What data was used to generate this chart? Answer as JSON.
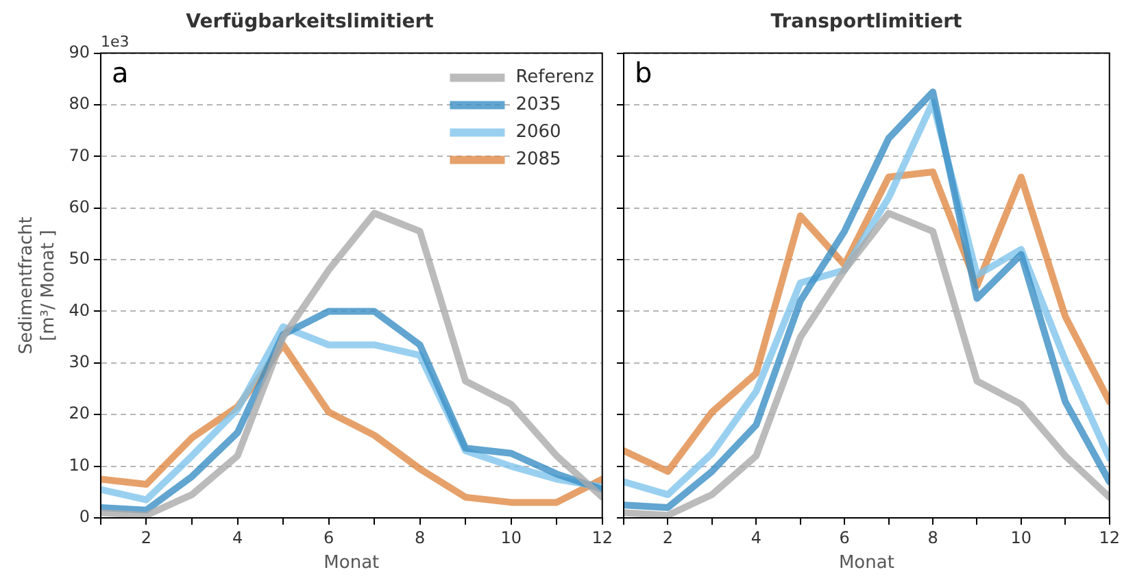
{
  "chart_data": [
    {
      "type": "line",
      "title": "Verfügbarkeitslimitiert",
      "xlabel": "Monat",
      "ylabel": "Sedimentfracht [m³/ Monat ]",
      "annotations": [
        "1e3",
        "a"
      ],
      "x": [
        1,
        2,
        3,
        4,
        5,
        6,
        7,
        8,
        9,
        10,
        11,
        12
      ],
      "series": [
        {
          "name": "Referenz",
          "color": "#aaaaaa",
          "values": [
            1,
            0.5,
            4.5,
            12,
            35,
            48,
            59,
            55.5,
            26.5,
            22,
            12,
            4
          ]
        },
        {
          "name": "2035",
          "color": "#3a8fc4",
          "values": [
            2,
            1.5,
            8,
            16.5,
            35.5,
            40,
            40,
            33.5,
            13.5,
            12.5,
            8.5,
            5.5
          ]
        },
        {
          "name": "2060",
          "color": "#7fc4ec",
          "values": [
            5.5,
            3.5,
            12,
            21,
            37,
            33.5,
            33.5,
            31.5,
            13,
            10,
            7.5,
            6
          ]
        },
        {
          "name": "2085",
          "color": "#e08a45",
          "values": [
            7.5,
            6.5,
            15.5,
            21.5,
            33.5,
            20.5,
            16,
            9.5,
            4,
            3,
            3,
            7.5
          ]
        }
      ],
      "xlim": [
        1,
        12
      ],
      "xticks": [
        {
          "value": 1,
          "label": null
        },
        2,
        {
          "value": 3,
          "label": null
        },
        4,
        {
          "value": 5,
          "label": null
        },
        6,
        {
          "value": 7,
          "label": null
        },
        8,
        {
          "value": 9,
          "label": null
        },
        10,
        {
          "value": 11,
          "label": null
        },
        12
      ],
      "ylim": [
        0,
        90
      ],
      "yticks": [
        0,
        10,
        20,
        30,
        40,
        50,
        60,
        70,
        80,
        90
      ],
      "grid": "y",
      "legend": "top right",
      "line_style": "solid",
      "marker": "none"
    },
    {
      "type": "line",
      "title": "Transportlimitiert",
      "xlabel": "Monat",
      "annotations": [
        "b"
      ],
      "x": [
        1,
        2,
        3,
        4,
        5,
        6,
        7,
        8,
        9,
        10,
        11,
        12
      ],
      "series": [
        {
          "color": "#aaaaaa",
          "values": [
            1,
            0.5,
            4.5,
            12,
            35,
            48,
            59,
            55.5,
            26.5,
            22,
            12,
            4
          ]
        },
        {
          "color": "#3a8fc4",
          "values": [
            2.5,
            2,
            9,
            18,
            42,
            55.5,
            73.5,
            82.5,
            42.5,
            51,
            22.5,
            7
          ]
        },
        {
          "color": "#7fc4ec",
          "values": [
            7,
            4.5,
            12.5,
            24.5,
            45.5,
            48,
            62,
            80.5,
            47,
            52,
            30.5,
            11.5
          ]
        },
        {
          "color": "#e08a45",
          "values": [
            13,
            9,
            20.5,
            28,
            58.5,
            49,
            66,
            67,
            45,
            66,
            39,
            22.5
          ]
        }
      ],
      "xlim": [
        1,
        12
      ],
      "xticks": [
        {
          "value": 1,
          "label": null
        },
        2,
        {
          "value": 3,
          "label": null
        },
        4,
        {
          "value": 5,
          "label": null
        },
        6,
        {
          "value": 7,
          "label": null
        },
        8,
        {
          "value": 9,
          "label": null
        },
        10,
        {
          "value": 11,
          "label": null
        },
        12
      ],
      "ylim": [
        0,
        90
      ],
      "yticks": [
        0,
        10,
        20,
        30,
        40,
        50,
        60,
        70,
        80,
        90
      ],
      "grid": "y",
      "tick_labels": "x",
      "line_style": "solid",
      "marker": "none"
    }
  ]
}
